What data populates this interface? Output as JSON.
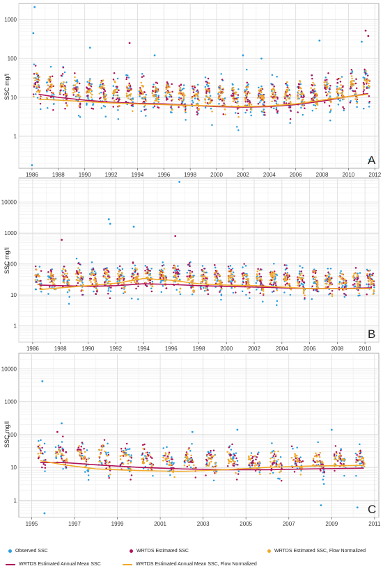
{
  "colors": {
    "observed": "#2b9de0",
    "estimated": "#b0135a",
    "flow_normalized": "#f0a92a",
    "annual_mean": "#b0135a",
    "annual_mean_fn": "#f0a92a"
  },
  "legend": {
    "observed": "Observed SSC",
    "estimated": "WRTDS Estimated SSC",
    "flow_normalized": "WRTDS Estimated SSC, Flow Normalized",
    "annual_mean": "WRTDS Estimated Annual Mean SSC",
    "annual_mean_fn": "WRTDS Estimated Annual Mean SSC, Flow Normalized"
  },
  "chart_data": [
    {
      "type": "scatter",
      "panel": "A",
      "ylabel": "SSC mg/l",
      "xlim": [
        1985.0,
        2012.3
      ],
      "ylim": [
        0.15,
        2600
      ],
      "yscale": "log",
      "yticks": [
        1,
        10,
        100,
        1000
      ],
      "xticks": [
        1986,
        1988,
        1990,
        1992,
        1994,
        1996,
        1998,
        2000,
        2002,
        2004,
        2006,
        2008,
        2010,
        2012
      ],
      "grid": true,
      "start": 1986.0,
      "end": 2011.6,
      "annual_mean": {
        "x": [
          1986.5,
          1988,
          1990,
          1992,
          1994,
          1996,
          1998,
          2000,
          2002,
          2004,
          2006,
          2008,
          2010,
          2011.5
        ],
        "y": [
          12,
          10,
          8.5,
          7.5,
          7,
          6.8,
          6.2,
          5.8,
          5.6,
          5.8,
          6.5,
          8,
          10.5,
          12.5
        ]
      },
      "annual_mean_fn": {
        "x": [
          1986.5,
          1988,
          1990,
          1992,
          1994,
          1996,
          1998,
          2000,
          2002,
          2004,
          2006,
          2008,
          2010,
          2011.5
        ],
        "y": [
          9,
          8.5,
          7.8,
          7.2,
          6.8,
          6.5,
          6.2,
          6,
          5.8,
          6,
          6.8,
          8.5,
          10.5,
          12
        ]
      },
      "observed_outliers": {
        "x": [
          1986.2,
          1986.1,
          1990.4,
          1995.3,
          2002.0,
          2003.4,
          2007.8,
          2011.0,
          1986.0,
          2011.6
        ],
        "y": [
          2100,
          450,
          190,
          120,
          120,
          100,
          290,
          270,
          0.18,
          0.25
        ]
      },
      "estimated_outliers": {
        "x": [
          1993.4,
          2011.3,
          2011.5
        ],
        "y": [
          250,
          520,
          380
        ]
      }
    },
    {
      "type": "scatter",
      "panel": "B",
      "ylabel": "SSC mg/l",
      "xlim": [
        1985.0,
        2011.0
      ],
      "ylim": [
        0.3,
        60000
      ],
      "yscale": "log",
      "yticks": [
        1,
        10,
        100,
        1000,
        10000
      ],
      "xticks": [
        1986,
        1988,
        1990,
        1992,
        1994,
        1996,
        1998,
        2000,
        2002,
        2004,
        2006,
        2008,
        2010
      ],
      "grid": true,
      "start": 1986.2,
      "end": 2010.7,
      "annual_mean": {
        "x": [
          1986.5,
          1988,
          1990,
          1992,
          1994,
          1996,
          1998,
          2000,
          2002,
          2004,
          2006,
          2008,
          2010.5
        ],
        "y": [
          21,
          20,
          19,
          20,
          23,
          22,
          20,
          19,
          18,
          17,
          16,
          16,
          17
        ]
      },
      "annual_mean_fn": {
        "x": [
          1986.5,
          1988,
          1990,
          1992,
          1994,
          1996,
          1998,
          2000,
          2002,
          2004,
          2006,
          2008,
          2010.5
        ],
        "y": [
          15,
          17,
          20,
          24,
          34,
          30,
          23,
          21,
          20,
          18,
          16,
          16,
          16
        ]
      },
      "observed_outliers": {
        "x": [
          1996.6,
          1991.5,
          1991.6,
          1993.3
        ],
        "y": [
          45000,
          2800,
          2000,
          1600
        ]
      },
      "estimated_outliers": {
        "x": [
          1988.1,
          1996.3
        ],
        "y": [
          600,
          800
        ]
      }
    },
    {
      "type": "scatter",
      "panel": "C",
      "ylabel": "SSC mg/l",
      "xlim": [
        1994.4,
        2011.2
      ],
      "ylim": [
        0.3,
        30000
      ],
      "yscale": "log",
      "yticks": [
        1,
        10,
        100,
        1000,
        10000
      ],
      "xticks": [
        1995,
        1997,
        1999,
        2001,
        2003,
        2005,
        2007,
        2009,
        2011
      ],
      "grid": true,
      "start": 1995.3,
      "end": 2010.6,
      "annual_mean": {
        "x": [
          1995.4,
          1996.5,
          1998,
          2000,
          2002,
          2004,
          2006,
          2008,
          2010.5
        ],
        "y": [
          14,
          14,
          12,
          10,
          9,
          8.5,
          8.5,
          9,
          9.5
        ]
      },
      "annual_mean_fn": {
        "x": [
          1995.4,
          1996.5,
          1998,
          2000,
          2002,
          2004,
          2006,
          2008,
          2010.5
        ],
        "y": [
          16,
          12,
          9,
          8,
          7.5,
          8.5,
          10,
          11,
          11.5
        ]
      },
      "observed_outliers": {
        "x": [
          1995.5,
          1996.4,
          2002.5,
          2004.6,
          2009.0,
          2008.5,
          2010.2,
          1995.6
        ],
        "y": [
          4200,
          220,
          120,
          140,
          140,
          0.7,
          0.6,
          0.4
        ]
      },
      "estimated_outliers": {
        "x": [
          1996.2
        ],
        "y": [
          120
        ]
      }
    }
  ]
}
